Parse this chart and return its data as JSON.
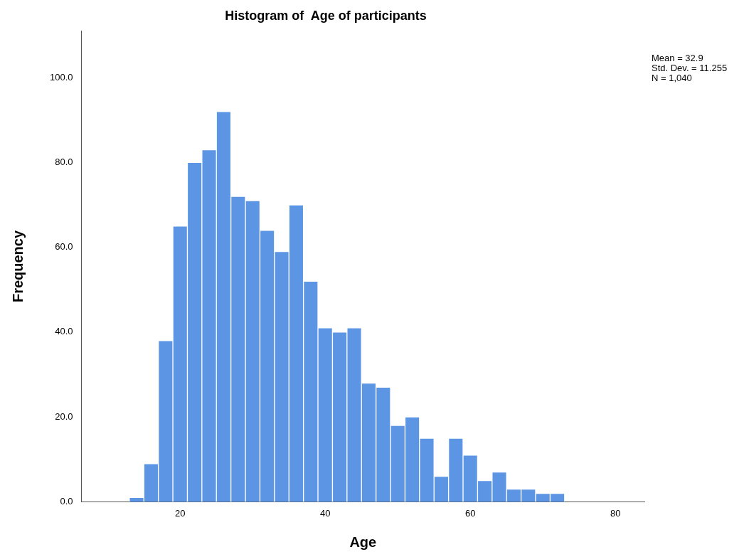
{
  "chart_data": {
    "type": "histogram",
    "title": "Histogram of  Age of participants",
    "xlabel": "Age",
    "ylabel": "Frequency",
    "bins": [
      13,
      15,
      17,
      19,
      21,
      23,
      25,
      27,
      29,
      31,
      33,
      35,
      37,
      39,
      41,
      43,
      45,
      47,
      49,
      51,
      53,
      55,
      57,
      59,
      61,
      63,
      65,
      67,
      69,
      71,
      73
    ],
    "values": [
      1,
      9,
      38,
      65,
      80,
      83,
      92,
      72,
      71,
      64,
      59,
      70,
      52,
      41,
      40,
      41,
      28,
      27,
      18,
      20,
      15,
      6,
      15,
      11,
      5,
      7,
      3,
      3,
      2,
      2
    ],
    "color": "#5b95e3",
    "xlim": [
      6.4,
      84
    ],
    "xticks": [
      20,
      40,
      60,
      80
    ],
    "ylim": [
      0,
      111
    ],
    "yticks": [
      {
        "value": 0,
        "label": "0.0"
      },
      {
        "value": 20,
        "label": "20.0"
      },
      {
        "value": 40,
        "label": "40.0"
      },
      {
        "value": 60,
        "label": "60.0"
      },
      {
        "value": 80,
        "label": "80.0"
      },
      {
        "value": 100,
        "label": "100.0"
      }
    ],
    "grid": false,
    "legend": false,
    "annotations": [
      "Mean = 32.9",
      "Std. Dev. = 11.255",
      "N = 1,040"
    ]
  }
}
